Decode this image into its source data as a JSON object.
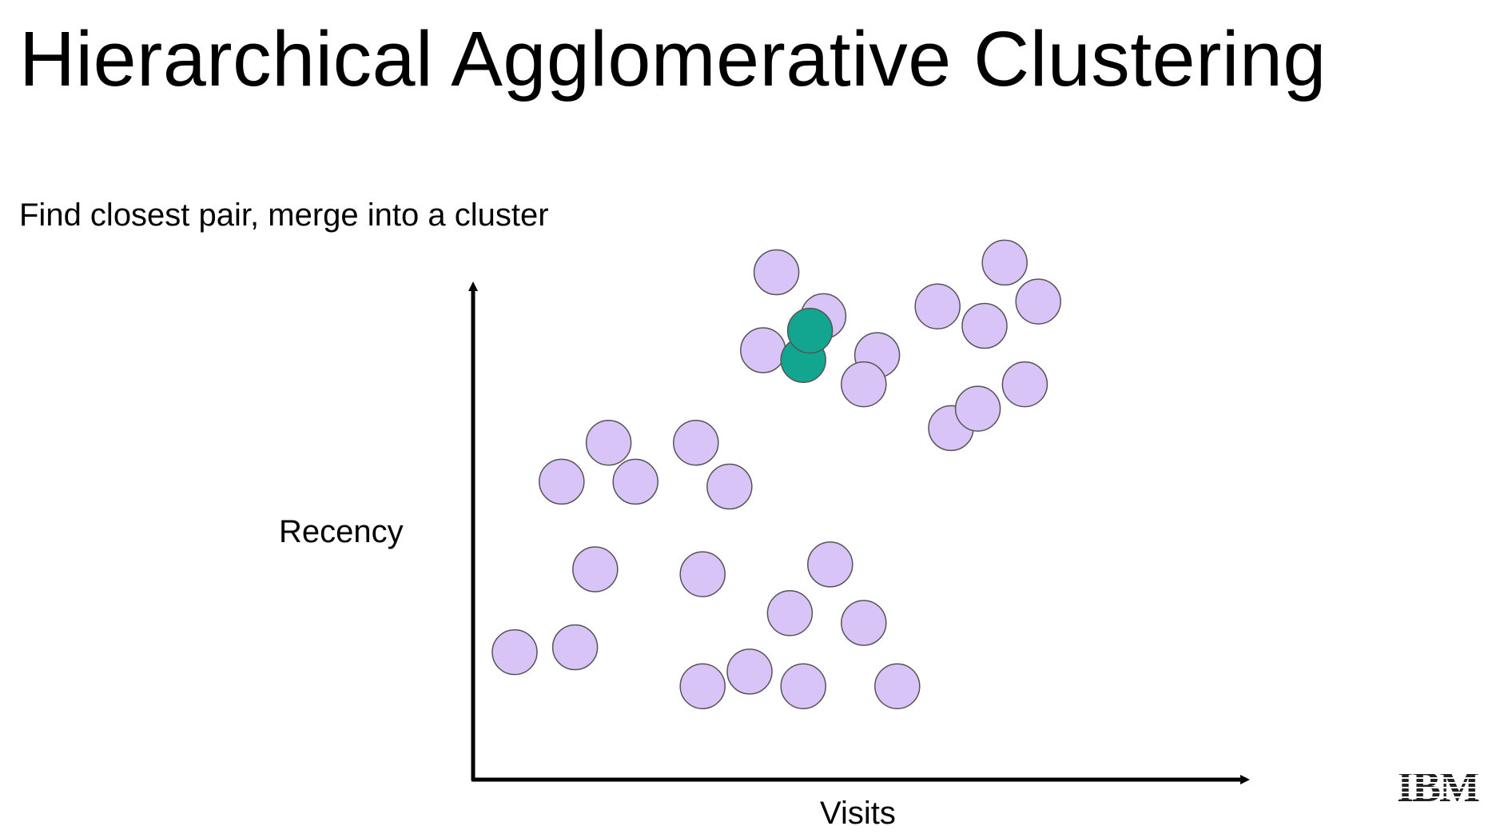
{
  "title": "Hierarchical Agglomerative Clustering",
  "subtitle": "Find closest pair, merge into a cluster",
  "axes": {
    "x_label": "Visits",
    "y_label": "Recency"
  },
  "logo": {
    "text": "IBM",
    "icon": "ibm-logo-icon"
  },
  "colors": {
    "point_fill": "#d8c4f7",
    "point_stroke": "#555555",
    "highlight_fill": "#12a58f",
    "axis": "#000000"
  },
  "chart_data": {
    "type": "scatter",
    "xlabel": "Visits",
    "ylabel": "Recency",
    "series": [
      {
        "points": [
          {
            "x": 0.44,
            "y": 0.94,
            "merged": false
          },
          {
            "x": 0.51,
            "y": 0.85,
            "merged": false
          },
          {
            "x": 0.42,
            "y": 0.78,
            "merged": false
          },
          {
            "x": 0.59,
            "y": 0.77,
            "merged": false
          },
          {
            "x": 0.68,
            "y": 0.87,
            "merged": false
          },
          {
            "x": 0.78,
            "y": 0.96,
            "merged": false
          },
          {
            "x": 0.75,
            "y": 0.83,
            "merged": false
          },
          {
            "x": 0.83,
            "y": 0.88,
            "merged": false
          },
          {
            "x": 0.7,
            "y": 0.62,
            "merged": false
          },
          {
            "x": 0.74,
            "y": 0.66,
            "merged": false
          },
          {
            "x": 0.57,
            "y": 0.71,
            "merged": false
          },
          {
            "x": 0.81,
            "y": 0.71,
            "merged": false
          },
          {
            "x": 0.48,
            "y": 0.76,
            "merged": true
          },
          {
            "x": 0.49,
            "y": 0.82,
            "merged": true
          },
          {
            "x": 0.19,
            "y": 0.59,
            "merged": false
          },
          {
            "x": 0.32,
            "y": 0.59,
            "merged": false
          },
          {
            "x": 0.12,
            "y": 0.51,
            "merged": false
          },
          {
            "x": 0.23,
            "y": 0.51,
            "merged": false
          },
          {
            "x": 0.37,
            "y": 0.5,
            "merged": false
          },
          {
            "x": 0.17,
            "y": 0.33,
            "merged": false
          },
          {
            "x": 0.33,
            "y": 0.32,
            "merged": false
          },
          {
            "x": 0.52,
            "y": 0.34,
            "merged": false
          },
          {
            "x": 0.46,
            "y": 0.24,
            "merged": false
          },
          {
            "x": 0.57,
            "y": 0.22,
            "merged": false
          },
          {
            "x": 0.05,
            "y": 0.16,
            "merged": false
          },
          {
            "x": 0.14,
            "y": 0.17,
            "merged": false
          },
          {
            "x": 0.33,
            "y": 0.09,
            "merged": false
          },
          {
            "x": 0.4,
            "y": 0.12,
            "merged": false
          },
          {
            "x": 0.48,
            "y": 0.09,
            "merged": false
          },
          {
            "x": 0.62,
            "y": 0.09,
            "merged": false
          }
        ]
      }
    ]
  }
}
